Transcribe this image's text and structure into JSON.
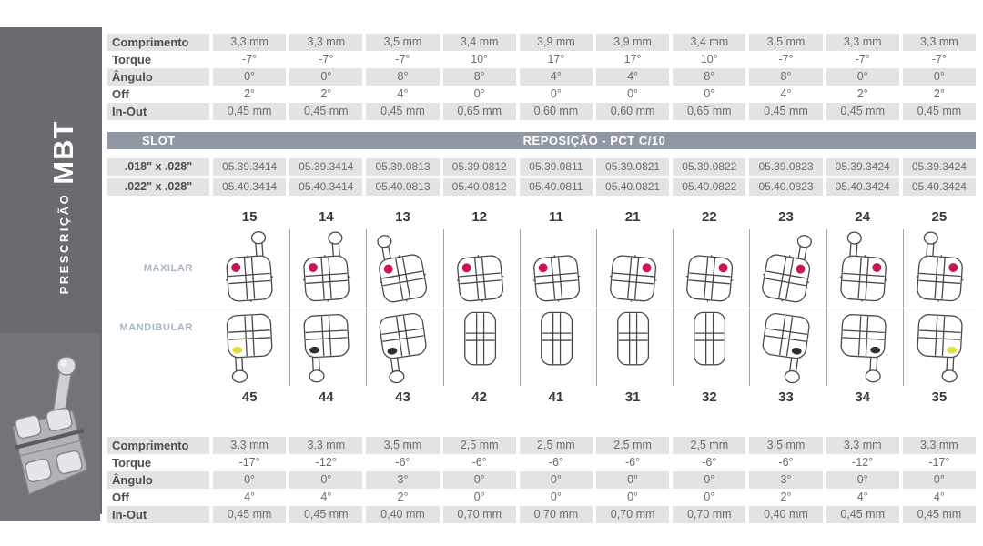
{
  "sidebar": {
    "label_small": "PRESCRIÇÃO",
    "label_big": "MBT"
  },
  "top_table": {
    "rows": [
      {
        "label": "Comprimento",
        "shaded": true,
        "values": [
          "3,3 mm",
          "3,3 mm",
          "3,5 mm",
          "3,4 mm",
          "3,9 mm",
          "3,9 mm",
          "3,4 mm",
          "3,5 mm",
          "3,3 mm",
          "3,3 mm"
        ]
      },
      {
        "label": "Torque",
        "shaded": false,
        "values": [
          "-7°",
          "-7°",
          "-7°",
          "10°",
          "17°",
          "17°",
          "10°",
          "-7°",
          "-7°",
          "-7°"
        ]
      },
      {
        "label": "Ângulo",
        "shaded": true,
        "values": [
          "0°",
          "0°",
          "8°",
          "8°",
          "4°",
          "4°",
          "8°",
          "8°",
          "0°",
          "0°"
        ]
      },
      {
        "label": "Off",
        "shaded": false,
        "values": [
          "2°",
          "2°",
          "4°",
          "0°",
          "0°",
          "0°",
          "0°",
          "4°",
          "2°",
          "2°"
        ]
      },
      {
        "label": "In-Out",
        "shaded": true,
        "values": [
          "0,45 mm",
          "0,45 mm",
          "0,45 mm",
          "0,65 mm",
          "0,60 mm",
          "0,60 mm",
          "0,65 mm",
          "0,45 mm",
          "0,45 mm",
          "0,45 mm"
        ]
      }
    ]
  },
  "slot_section": {
    "header_left": "SLOT",
    "header_title": "REPOSIÇÃO - PCT C/10",
    "rows": [
      {
        "label": ".018\" x .028\"",
        "values": [
          "05.39.3414",
          "05.39.3414",
          "05.39.0813",
          "05.39.0812",
          "05.39.0811",
          "05.39.0821",
          "05.39.0822",
          "05.39.0823",
          "05.39.3424",
          "05.39.3424"
        ]
      },
      {
        "label": ".022\" x .028\"",
        "values": [
          "05.40.3414",
          "05.40.3414",
          "05.40.0813",
          "05.40.0812",
          "05.40.0811",
          "05.40.0821",
          "05.40.0822",
          "05.40.0823",
          "05.40.3424",
          "05.40.3424"
        ]
      }
    ]
  },
  "arches": {
    "upper_label": "MAXILAR",
    "lower_label": "MANDIBULAR",
    "upper_teeth": [
      {
        "num": "15",
        "dot": "red",
        "dot_side": "left",
        "hook": "right",
        "tilt": -4
      },
      {
        "num": "14",
        "dot": "red",
        "dot_side": "left",
        "hook": "right",
        "tilt": -4
      },
      {
        "num": "13",
        "dot": "red",
        "dot_side": "left",
        "hook": "left",
        "tilt": -10
      },
      {
        "num": "12",
        "dot": "red",
        "dot_side": "left",
        "hook": "none",
        "tilt": -5
      },
      {
        "num": "11",
        "dot": "red",
        "dot_side": "left",
        "hook": "none",
        "tilt": -5
      },
      {
        "num": "21",
        "dot": "red",
        "dot_side": "right",
        "hook": "none",
        "tilt": 5
      },
      {
        "num": "22",
        "dot": "red",
        "dot_side": "right",
        "hook": "none",
        "tilt": 5
      },
      {
        "num": "23",
        "dot": "red",
        "dot_side": "right",
        "hook": "right",
        "tilt": 10
      },
      {
        "num": "24",
        "dot": "red",
        "dot_side": "right",
        "hook": "left",
        "tilt": 4
      },
      {
        "num": "25",
        "dot": "red",
        "dot_side": "right",
        "hook": "left",
        "tilt": 4
      }
    ],
    "lower_teeth": [
      {
        "num": "45",
        "dot": "yellow",
        "dot_side": "left",
        "hook": "left",
        "tilt": -3
      },
      {
        "num": "44",
        "dot": "black",
        "dot_side": "left",
        "hook": "left",
        "tilt": -3
      },
      {
        "num": "43",
        "dot": "black",
        "dot_side": "left",
        "hook": "left",
        "tilt": -8
      },
      {
        "num": "42",
        "dot": "none",
        "dot_side": "none",
        "hook": "none",
        "tilt": 0
      },
      {
        "num": "41",
        "dot": "none",
        "dot_side": "none",
        "hook": "none",
        "tilt": 0
      },
      {
        "num": "31",
        "dot": "none",
        "dot_side": "none",
        "hook": "none",
        "tilt": 0
      },
      {
        "num": "32",
        "dot": "none",
        "dot_side": "none",
        "hook": "none",
        "tilt": 0
      },
      {
        "num": "33",
        "dot": "black",
        "dot_side": "right",
        "hook": "right",
        "tilt": 8
      },
      {
        "num": "34",
        "dot": "black",
        "dot_side": "right",
        "hook": "right",
        "tilt": 3
      },
      {
        "num": "35",
        "dot": "yellow",
        "dot_side": "right",
        "hook": "right",
        "tilt": 3
      }
    ]
  },
  "bottom_table": {
    "rows": [
      {
        "label": "Comprimento",
        "shaded": true,
        "values": [
          "3,3 mm",
          "3,3 mm",
          "3,5 mm",
          "2,5 mm",
          "2,5 mm",
          "2,5 mm",
          "2,5 mm",
          "3,5 mm",
          "3,3 mm",
          "3,3 mm"
        ]
      },
      {
        "label": "Torque",
        "shaded": false,
        "values": [
          "-17°",
          "-12°",
          "-6°",
          "-6°",
          "-6°",
          "-6°",
          "-6°",
          "-6°",
          "-12°",
          "-17°"
        ]
      },
      {
        "label": "Ângulo",
        "shaded": true,
        "values": [
          "0°",
          "0°",
          "3°",
          "0°",
          "0°",
          "0°",
          "0°",
          "3°",
          "0°",
          "0°"
        ]
      },
      {
        "label": "Off",
        "shaded": false,
        "values": [
          "4°",
          "4°",
          "2°",
          "0°",
          "0°",
          "0°",
          "0°",
          "2°",
          "4°",
          "4°"
        ]
      },
      {
        "label": "In-Out",
        "shaded": true,
        "values": [
          "0,45 mm",
          "0,45 mm",
          "0,40 mm",
          "0,70 mm",
          "0,70 mm",
          "0,70 mm",
          "0,70 mm",
          "0,40 mm",
          "0,45 mm",
          "0,45 mm"
        ]
      }
    ]
  },
  "colors": {
    "sidebar_bg": "#6b6a6f",
    "slot_bar": "#8f99a4",
    "cell_shade": "#e2e3e5",
    "dot_red": "#c9164f",
    "dot_yellow": "#e3df3a",
    "dot_black": "#2f2e2c",
    "bracket_stroke": "#4b4843"
  }
}
